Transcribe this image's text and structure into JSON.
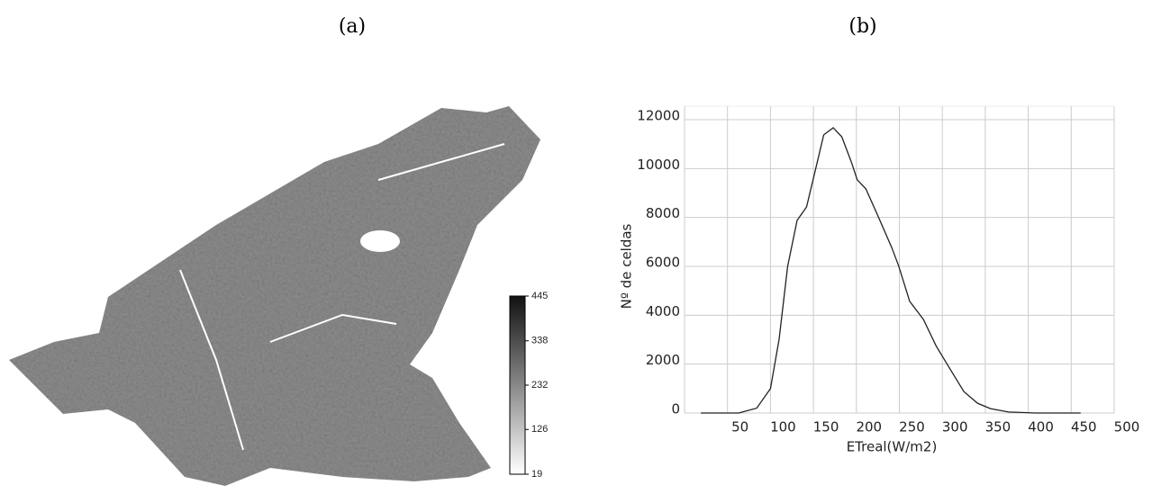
{
  "panels": {
    "a": "(a)",
    "b": "(b)"
  },
  "map": {
    "colorbar": {
      "lim": [
        19,
        445
      ],
      "ticks": [
        445,
        338,
        232,
        126,
        19
      ]
    }
  },
  "chart_data": {
    "type": "line",
    "ylabel": "Nº de celdas",
    "xlabel": "ETreal(W/m2)",
    "x": [
      19,
      63,
      84,
      100,
      110,
      120,
      131,
      142,
      152,
      162,
      173,
      183,
      194,
      201,
      211,
      225,
      241,
      249,
      262,
      278,
      293,
      309,
      325,
      341,
      356,
      377,
      409,
      461
    ],
    "values": [
      0,
      0,
      200,
      1000,
      3000,
      6000,
      7880,
      8430,
      9900,
      11380,
      11670,
      11300,
      10280,
      9540,
      9170,
      8070,
      6780,
      6040,
      4570,
      3830,
      2730,
      1800,
      880,
      400,
      180,
      40,
      0,
      0
    ],
    "color": "#222222",
    "xlim": [
      0,
      500
    ],
    "xticks": [
      50,
      100,
      150,
      200,
      250,
      300,
      350,
      400,
      450,
      500
    ],
    "ylim": [
      0,
      12000
    ],
    "yticks": [
      0,
      2000,
      4000,
      6000,
      8000,
      10000,
      12000
    ],
    "grid": true
  }
}
